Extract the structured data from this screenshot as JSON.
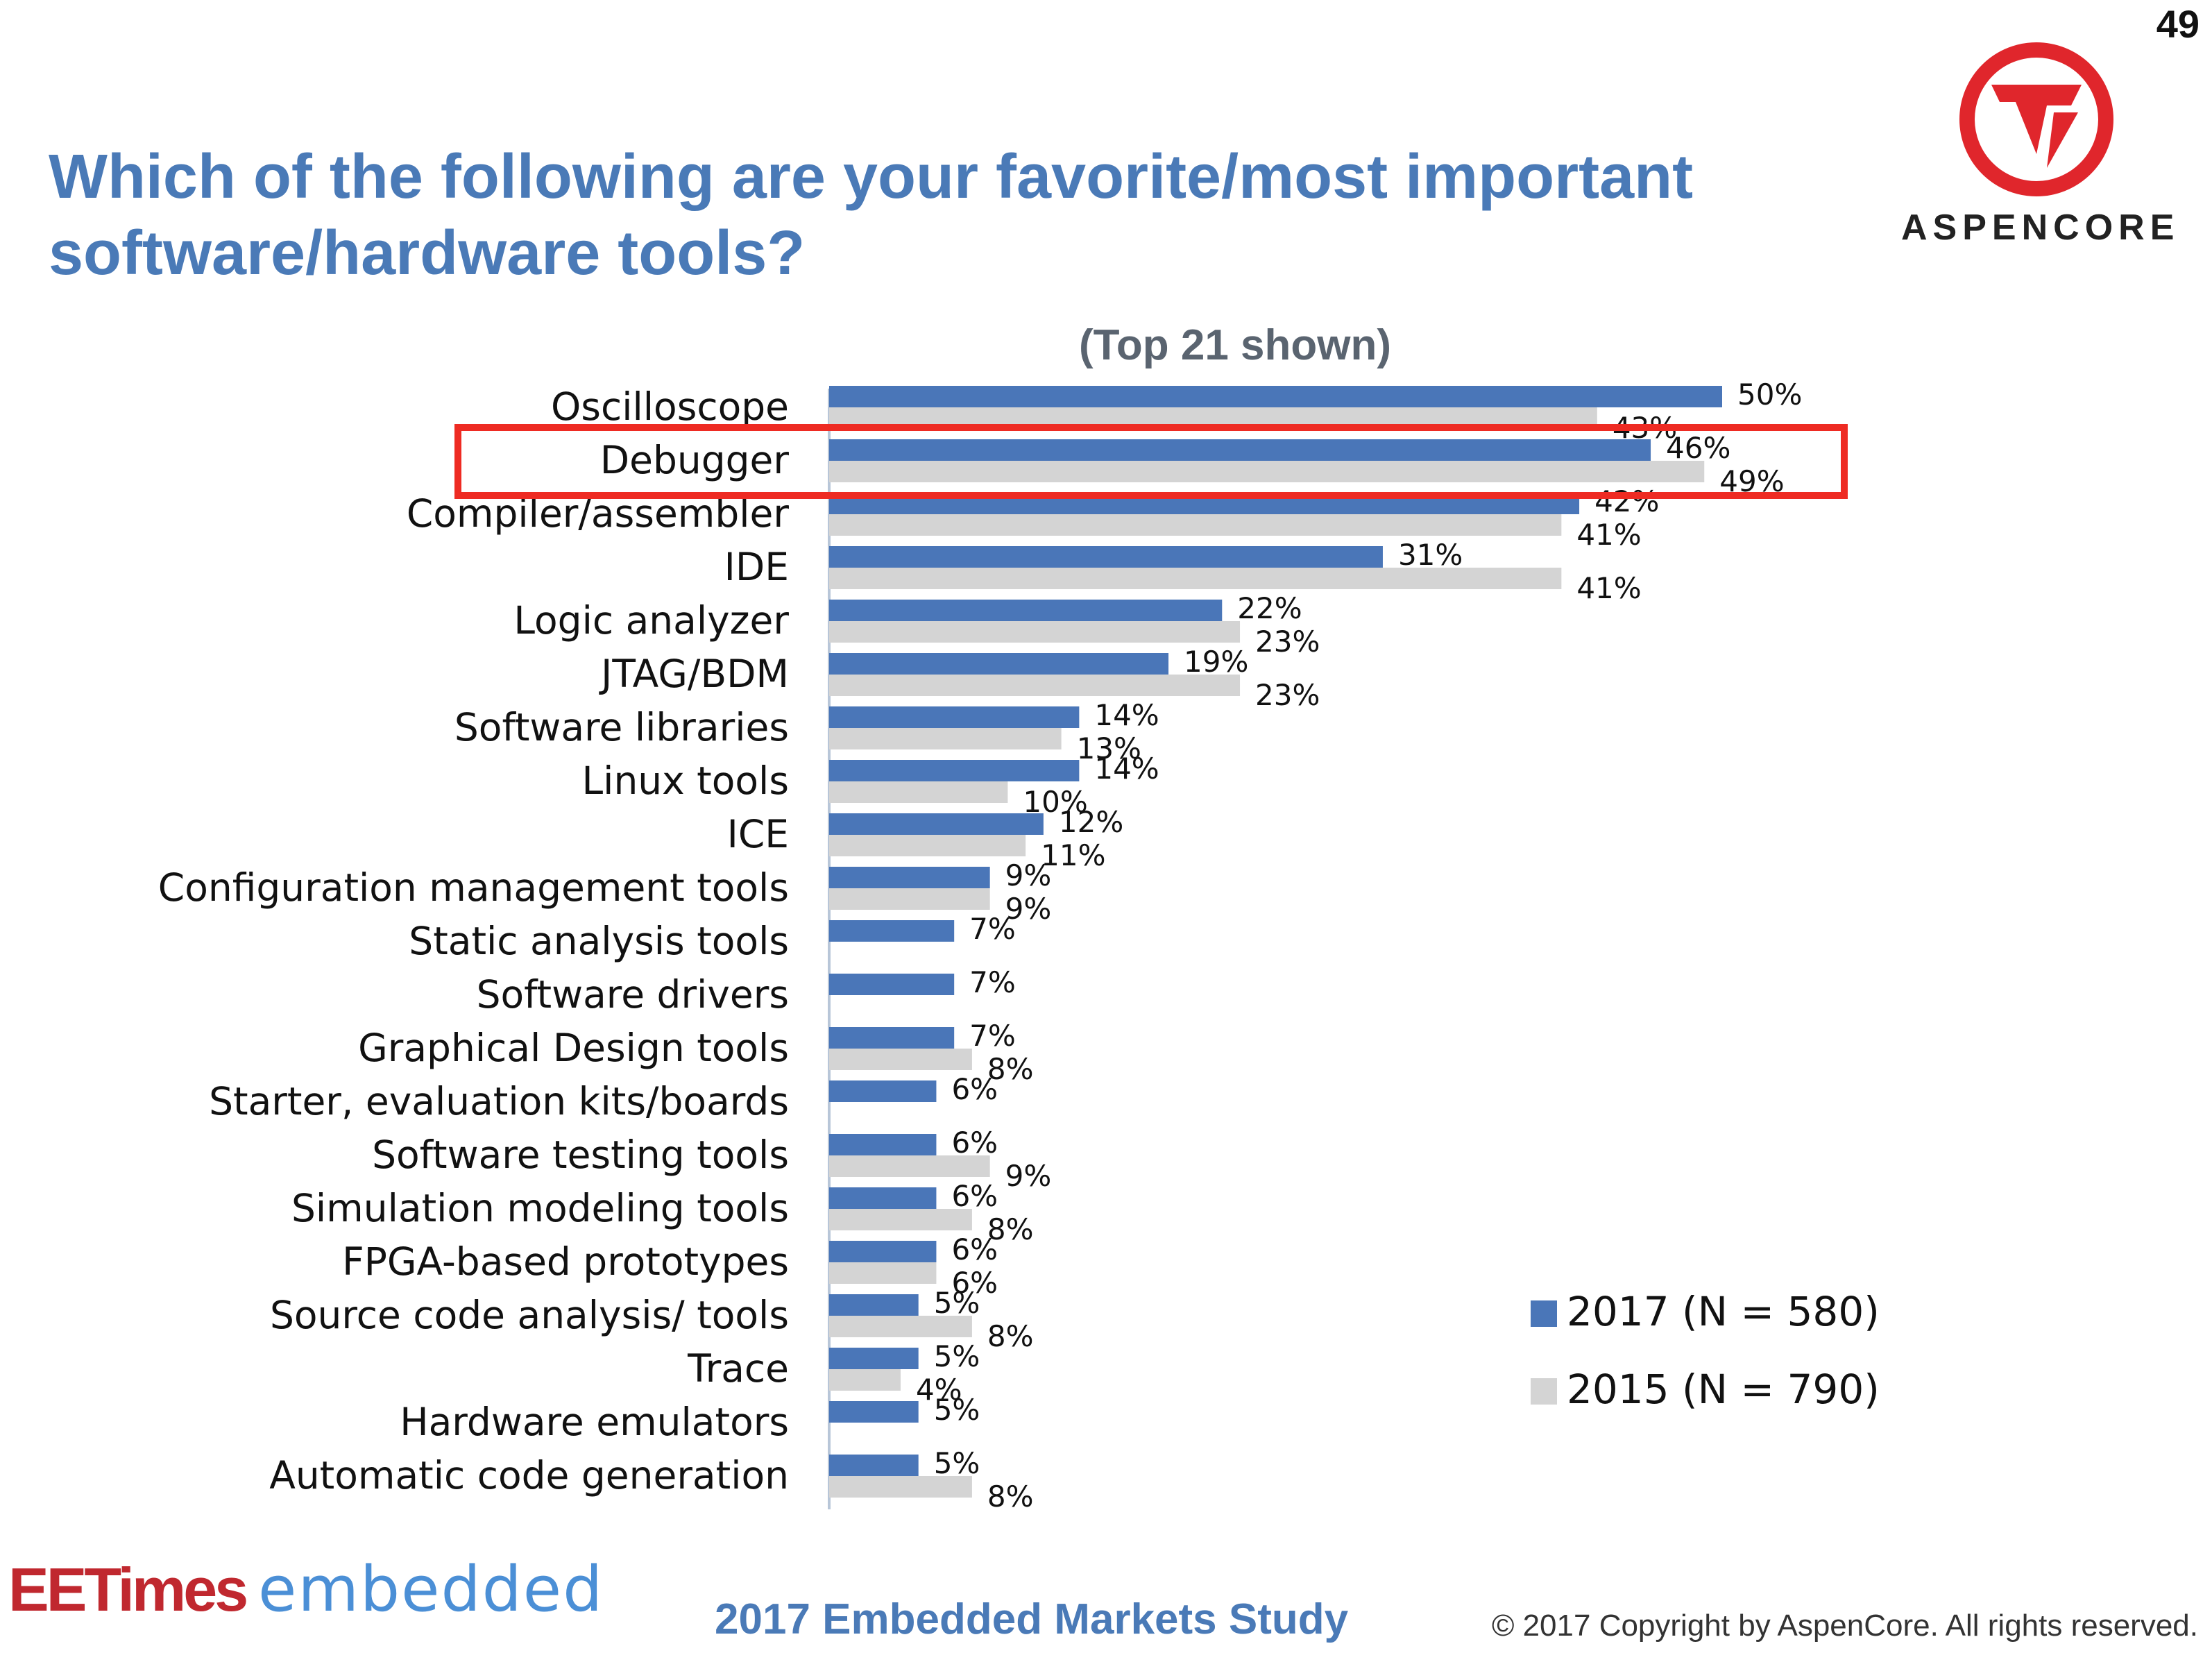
{
  "page_number": "49",
  "title_lines": [
    "Which of the following are your favorite/most important",
    "software/hardware tools?"
  ],
  "logo": {
    "text": "ASPENCORE",
    "color": "#e0262c"
  },
  "footer": {
    "ee_times": "EETimes",
    "embedded": "embedded",
    "study": "2017 Embedded Markets Study",
    "copyright": "© 2017 Copyright by AspenCore. All rights reserved."
  },
  "colors": {
    "series_2017": "#4a76b8",
    "series_2015": "#d4d4d4",
    "highlight": "#ee2b23",
    "title": "#4a7ab7"
  },
  "chart_data": {
    "type": "bar",
    "orientation": "horizontal",
    "title": "(Top 21 shown)",
    "categories": [
      "Oscilloscope",
      "Debugger",
      "Compiler/assembler",
      "IDE",
      "Logic analyzer",
      "JTAG/BDM",
      "Software libraries",
      "Linux tools",
      "ICE",
      "Configuration management tools",
      "Static analysis tools",
      "Software drivers",
      "Graphical Design tools",
      "Starter, evaluation kits/boards",
      "Software testing tools",
      "Simulation modeling tools",
      "FPGA-based prototypes",
      "Source code analysis/ tools",
      "Trace",
      "Hardware emulators",
      "Automatic code generation"
    ],
    "series": [
      {
        "name": "2017 (N = 580)",
        "values": [
          50,
          46,
          42,
          31,
          22,
          19,
          14,
          14,
          12,
          9,
          7,
          7,
          7,
          6,
          6,
          6,
          6,
          5,
          5,
          5,
          5
        ]
      },
      {
        "name": "2015 (N = 790)",
        "values": [
          43,
          49,
          41,
          41,
          23,
          23,
          13,
          10,
          11,
          9,
          null,
          null,
          8,
          null,
          9,
          8,
          6,
          8,
          4,
          null,
          8
        ]
      }
    ],
    "value_suffix": "%",
    "xlim": [
      0,
      50
    ],
    "highlighted_category": "Debugger",
    "legend_position": "bottom-right",
    "grid": false
  }
}
